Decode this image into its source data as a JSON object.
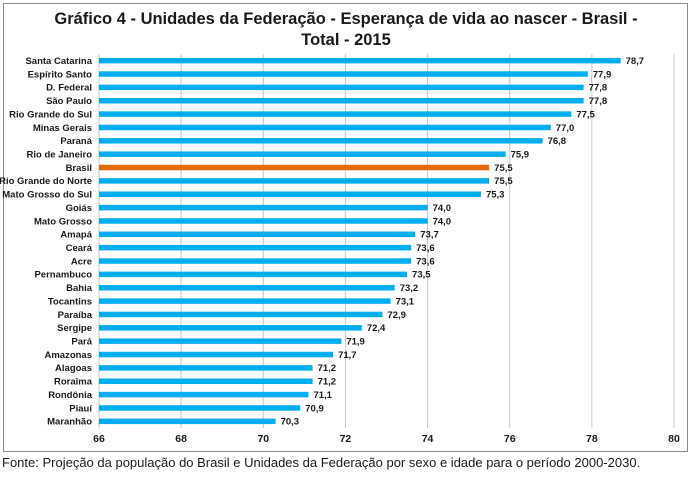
{
  "chart_data": {
    "type": "bar",
    "orientation": "horizontal",
    "title_line1": "Gráfico 4 - Unidades da Federação - Esperança de vida ao nascer - Brasil -",
    "title_line2": "Total - 2015",
    "xlabel": "",
    "ylabel": "",
    "xlim": [
      66,
      80
    ],
    "x_ticks": [
      66,
      68,
      70,
      72,
      74,
      76,
      78,
      80
    ],
    "grid": "vertical",
    "legend": "none",
    "colors": {
      "default": "#00AEEF",
      "highlight": "#E46C0A"
    },
    "highlight_category": "Brasil",
    "categories": [
      "Santa Catarina",
      "Espírito Santo",
      "D. Federal",
      "São Paulo",
      "Rio Grande do Sul",
      "Minas Gerais",
      "Paraná",
      "Rio de Janeiro",
      "Brasil",
      "Rio Grande do Norte",
      "Mato Grosso do Sul",
      "Goiás",
      "Mato Grosso",
      "Amapá",
      "Ceará",
      "Acre",
      "Pernambuco",
      "Bahia",
      "Tocantins",
      "Paraíba",
      "Sergipe",
      "Pará",
      "Amazonas",
      "Alagoas",
      "Roraima",
      "Rondônia",
      "Piauí",
      "Maranhão"
    ],
    "values": [
      78.7,
      77.9,
      77.8,
      77.8,
      77.5,
      77.0,
      76.8,
      75.9,
      75.5,
      75.5,
      75.3,
      74.0,
      74.0,
      73.7,
      73.6,
      73.6,
      73.5,
      73.2,
      73.1,
      72.9,
      72.4,
      71.9,
      71.7,
      71.2,
      71.2,
      71.1,
      70.9,
      70.3
    ],
    "value_labels": [
      "78,7",
      "77,9",
      "77,8",
      "77,8",
      "77,5",
      "77,0",
      "76,8",
      "75,9",
      "75,5",
      "75,5",
      "75,3",
      "74,0",
      "74,0",
      "73,7",
      "73,6",
      "73,6",
      "73,5",
      "73,2",
      "73,1",
      "72,9",
      "72,4",
      "71,9",
      "71,7",
      "71,2",
      "71,2",
      "71,1",
      "70,9",
      "70,3"
    ]
  },
  "source": "Fonte: Projeção da população do Brasil e Unidades da Federação por sexo e idade para o período 2000-2030."
}
